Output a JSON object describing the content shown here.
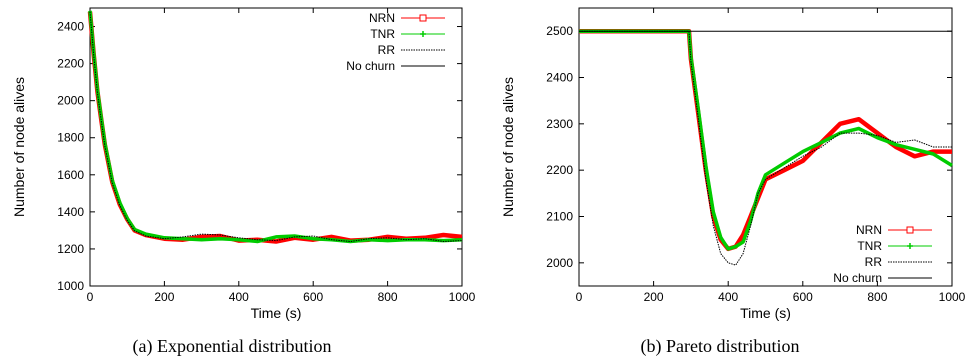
{
  "chart_data": [
    {
      "type": "line",
      "caption": "(a)  Exponential distribution",
      "xlabel": "Time (s)",
      "ylabel": "Number of node alives",
      "xlim": [
        0,
        1000
      ],
      "ylim": [
        1000,
        2500
      ],
      "xticks": [
        "0",
        "200",
        "400",
        "600",
        "800",
        "1000"
      ],
      "yticks": [
        "1000",
        "1200",
        "1400",
        "1600",
        "1800",
        "2000",
        "2200",
        "2400"
      ],
      "legend_position": "top-right",
      "series": [
        {
          "name": "NRN",
          "color": "#ff0000",
          "marker": "square",
          "x": [
            0,
            10,
            20,
            30,
            40,
            60,
            80,
            100,
            120,
            150,
            200,
            250,
            300,
            350,
            400,
            450,
            500,
            550,
            600,
            650,
            700,
            750,
            800,
            850,
            900,
            950,
            1000
          ],
          "y": [
            2480,
            2250,
            2050,
            1900,
            1760,
            1560,
            1440,
            1360,
            1300,
            1275,
            1255,
            1250,
            1265,
            1270,
            1245,
            1250,
            1240,
            1260,
            1250,
            1265,
            1245,
            1250,
            1265,
            1255,
            1260,
            1275,
            1265
          ]
        },
        {
          "name": "TNR",
          "color": "#00cc00",
          "marker": "star",
          "x": [
            0,
            10,
            20,
            30,
            40,
            60,
            80,
            100,
            120,
            150,
            200,
            250,
            300,
            350,
            400,
            450,
            500,
            550,
            600,
            650,
            700,
            750,
            800,
            850,
            900,
            950,
            1000
          ],
          "y": [
            2485,
            2260,
            2060,
            1910,
            1770,
            1570,
            1450,
            1365,
            1305,
            1280,
            1260,
            1255,
            1250,
            1255,
            1250,
            1240,
            1265,
            1270,
            1255,
            1250,
            1240,
            1250,
            1245,
            1250,
            1250,
            1245,
            1250
          ]
        },
        {
          "name": "RR",
          "color": "#000000",
          "marker": "dot",
          "x": [
            0,
            10,
            20,
            30,
            40,
            60,
            80,
            100,
            120,
            150,
            200,
            250,
            300,
            350,
            400,
            450,
            500,
            550,
            600,
            650,
            700,
            750,
            800,
            850,
            900,
            950,
            1000
          ],
          "y": [
            2480,
            2245,
            2045,
            1895,
            1755,
            1555,
            1435,
            1355,
            1298,
            1270,
            1255,
            1265,
            1280,
            1275,
            1260,
            1250,
            1245,
            1265,
            1270,
            1250,
            1240,
            1255,
            1260,
            1250,
            1255,
            1240,
            1245
          ]
        },
        {
          "name": "No churn",
          "color": "#000000",
          "marker": "none",
          "x": [
            0,
            1000
          ],
          "y": [
            2500,
            2500
          ]
        }
      ]
    },
    {
      "type": "line",
      "caption": "(b)  Pareto distribution",
      "xlabel": "Time (s)",
      "ylabel": "Number of node alives",
      "xlim": [
        0,
        1000
      ],
      "ylim": [
        1950,
        2550
      ],
      "xticks": [
        "0",
        "200",
        "400",
        "600",
        "800",
        "1000"
      ],
      "yticks": [
        "2000",
        "2100",
        "2200",
        "2300",
        "2400",
        "2500"
      ],
      "legend_position": "bottom-right",
      "series": [
        {
          "name": "NRN",
          "color": "#ff0000",
          "marker": "square",
          "x": [
            0,
            100,
            200,
            295,
            300,
            320,
            340,
            360,
            380,
            400,
            420,
            440,
            460,
            480,
            500,
            550,
            600,
            650,
            700,
            750,
            800,
            850,
            900,
            950,
            1000
          ],
          "y": [
            2500,
            2500,
            2500,
            2500,
            2440,
            2320,
            2200,
            2100,
            2050,
            2030,
            2035,
            2060,
            2100,
            2140,
            2180,
            2200,
            2220,
            2260,
            2300,
            2310,
            2280,
            2250,
            2230,
            2240,
            2240
          ]
        },
        {
          "name": "TNR",
          "color": "#00cc00",
          "marker": "plus",
          "x": [
            0,
            100,
            200,
            295,
            300,
            320,
            340,
            360,
            380,
            400,
            420,
            440,
            460,
            480,
            500,
            550,
            600,
            650,
            700,
            750,
            800,
            850,
            900,
            950,
            1000
          ],
          "y": [
            2500,
            2500,
            2500,
            2500,
            2445,
            2330,
            2210,
            2110,
            2055,
            2030,
            2035,
            2045,
            2090,
            2150,
            2190,
            2215,
            2240,
            2260,
            2280,
            2290,
            2270,
            2255,
            2245,
            2235,
            2210
          ]
        },
        {
          "name": "RR",
          "color": "#000000",
          "marker": "dot",
          "x": [
            0,
            100,
            200,
            295,
            300,
            320,
            340,
            360,
            380,
            400,
            420,
            440,
            460,
            480,
            500,
            550,
            600,
            650,
            700,
            750,
            800,
            850,
            900,
            950,
            1000
          ],
          "y": [
            2500,
            2500,
            2500,
            2500,
            2435,
            2310,
            2180,
            2080,
            2020,
            2000,
            1995,
            2020,
            2080,
            2150,
            2180,
            2205,
            2230,
            2250,
            2280,
            2280,
            2275,
            2260,
            2265,
            2250,
            2250
          ]
        },
        {
          "name": "No churn",
          "color": "#000000",
          "marker": "none",
          "x": [
            0,
            1000
          ],
          "y": [
            2500,
            2500
          ]
        }
      ]
    }
  ]
}
